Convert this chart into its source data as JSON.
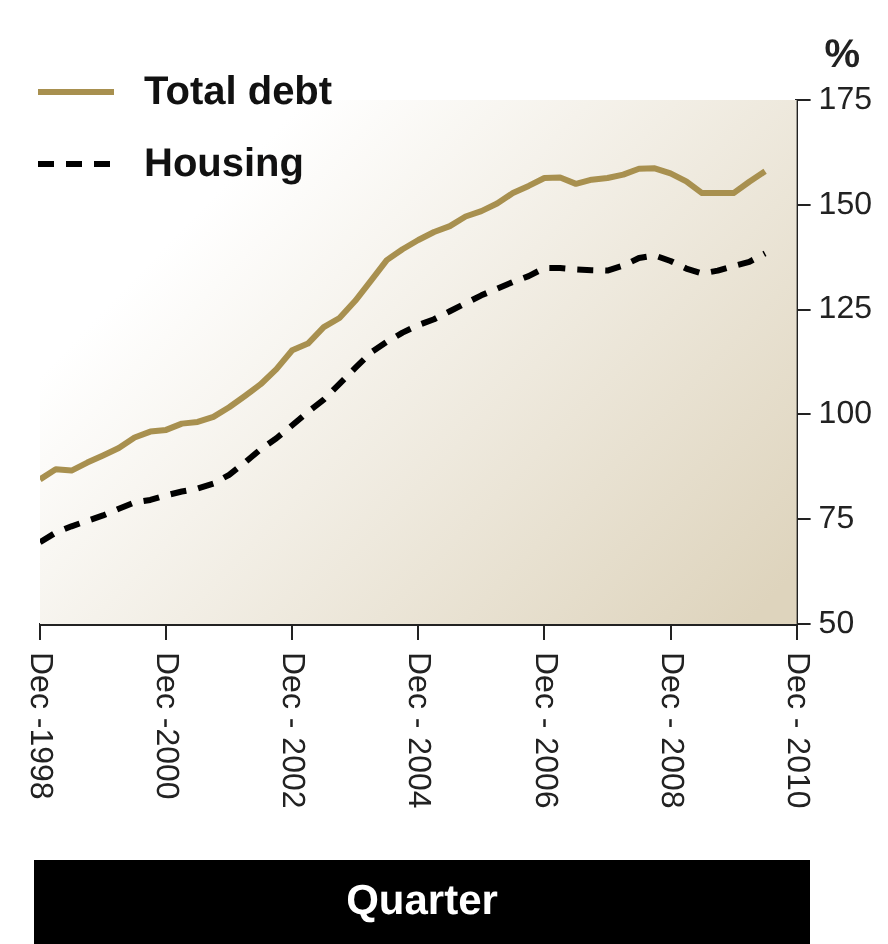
{
  "chart_data": {
    "type": "line",
    "xlabel": "Quarter",
    "ylabel": "%",
    "x": [
      "1998-12",
      "1999-03",
      "1999-06",
      "1999-09",
      "1999-12",
      "2000-03",
      "2000-06",
      "2000-09",
      "2000-12",
      "2001-03",
      "2001-06",
      "2001-09",
      "2001-12",
      "2002-03",
      "2002-06",
      "2002-09",
      "2002-12",
      "2003-03",
      "2003-06",
      "2003-09",
      "2003-12",
      "2004-03",
      "2004-06",
      "2004-09",
      "2004-12",
      "2005-03",
      "2005-06",
      "2005-09",
      "2005-12",
      "2006-03",
      "2006-06",
      "2006-09",
      "2006-12",
      "2007-03",
      "2007-06",
      "2007-09",
      "2007-12",
      "2008-03",
      "2008-06",
      "2008-09",
      "2008-12",
      "2009-03",
      "2009-06",
      "2009-09",
      "2009-12",
      "2010-03",
      "2010-06"
    ],
    "series": [
      {
        "name": "Total debt",
        "color": "#a8904f",
        "line_style": "solid",
        "values": [
          84.5,
          86.9,
          86.6,
          88.5,
          90.2,
          92,
          94.5,
          95.9,
          96.3,
          97.8,
          98.2,
          99.4,
          101.7,
          104.4,
          107.2,
          110.8,
          115.3,
          116.9,
          120.8,
          123,
          127.1,
          131.9,
          136.8,
          139.4,
          141.6,
          143.5,
          144.9,
          147.2,
          148.5,
          150.3,
          152.8,
          154.5,
          156.4,
          156.5,
          155,
          156,
          156.4,
          157.2,
          158.6,
          158.7,
          157.5,
          155.6,
          152.8,
          152.8,
          152.8,
          155.5,
          158
        ]
      },
      {
        "name": "Housing",
        "color": "#000000",
        "line_style": "dashed",
        "values": [
          69.5,
          71.8,
          73.3,
          74.6,
          75.9,
          77.5,
          79,
          79.6,
          80.7,
          81.6,
          82.3,
          83.5,
          85.6,
          88.5,
          91.7,
          94.3,
          97.4,
          100.6,
          103.5,
          107.3,
          111.1,
          114.8,
          117.3,
          119.5,
          121.3,
          122.7,
          124.6,
          126.5,
          128.4,
          130,
          131.6,
          133,
          134.9,
          134.9,
          134.6,
          134.4,
          134.3,
          135.5,
          137.3,
          137.9,
          136.6,
          134.8,
          133.6,
          134.3,
          135.4,
          136.4,
          138.4
        ]
      }
    ],
    "xlim": [
      "1998-12",
      "2010-12"
    ],
    "xticks": [
      {
        "value": "1998-12",
        "label": "Dec -1998"
      },
      {
        "value": "2000-12",
        "label": "Dec -2000"
      },
      {
        "value": "2002-12",
        "label": "Dec - 2002"
      },
      {
        "value": "2004-12",
        "label": "Dec - 2004"
      },
      {
        "value": "2006-12",
        "label": "Dec - 2006"
      },
      {
        "value": "2008-12",
        "label": "Dec - 2008"
      },
      {
        "value": "2010-12",
        "label": "Dec - 2010"
      }
    ],
    "ylim": [
      50,
      175
    ],
    "yticks": [
      50,
      75,
      100,
      125,
      150,
      175
    ],
    "grid": false,
    "legend": "top left",
    "marker": "none"
  }
}
